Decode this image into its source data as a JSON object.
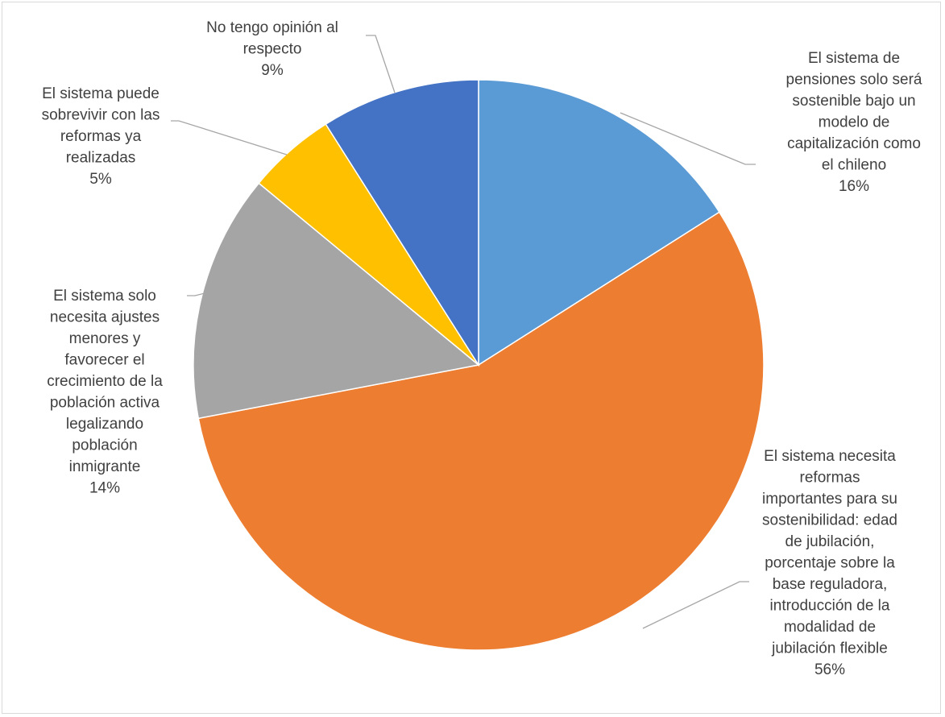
{
  "chart_data": {
    "type": "pie",
    "title": "",
    "slices": [
      {
        "label_lines": [
          "El sistema de",
          "pensiones solo será",
          "sostenible bajo un",
          "modelo de",
          "capitalización como",
          "el chileno"
        ],
        "pct_label": "16%",
        "value": 16,
        "color": "#5b9bd5"
      },
      {
        "label_lines": [
          "El sistema necesita",
          "reformas",
          "importantes para su",
          "sostenibilidad: edad",
          "de jubilación,",
          "porcentaje sobre la",
          "base reguladora,",
          "introducción de la",
          "modalidad de",
          "jubilación flexible"
        ],
        "pct_label": "56%",
        "value": 56,
        "color": "#ed7d31"
      },
      {
        "label_lines": [
          "El sistema solo",
          "necesita ajustes",
          "menores y",
          "favorecer el",
          "crecimiento de la",
          "población activa",
          "legalizando",
          "población",
          "inmigrante"
        ],
        "pct_label": "14%",
        "value": 14,
        "color": "#a5a5a5"
      },
      {
        "label_lines": [
          "El sistema puede",
          "sobrevivir con las",
          "reformas ya",
          "realizadas"
        ],
        "pct_label": "5%",
        "value": 5,
        "color": "#ffc000"
      },
      {
        "label_lines": [
          "No tengo opinión al",
          "respecto"
        ],
        "pct_label": "9%",
        "value": 9,
        "color": "#4472c4"
      }
    ],
    "legend": "none"
  }
}
